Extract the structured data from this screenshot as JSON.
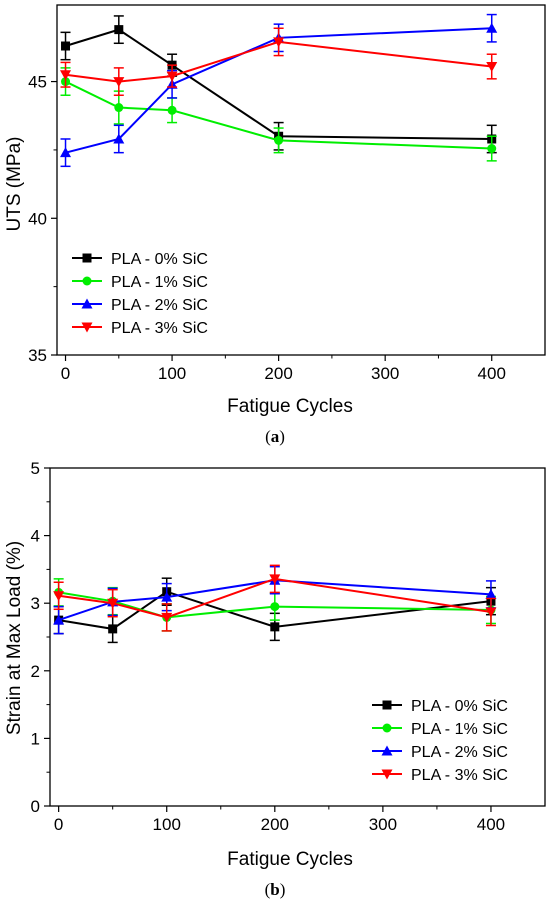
{
  "chart_data": [
    {
      "type": "line",
      "caption_letter": "a",
      "title": "",
      "xlabel": "Fatigue Cycles",
      "ylabel": "UTS (MPa)",
      "xlim": [
        -8,
        450
      ],
      "ylim": [
        35,
        47.8
      ],
      "xticks": [
        0,
        100,
        200,
        300,
        400
      ],
      "yticks": [
        35,
        40,
        45
      ],
      "grid": false,
      "legend_position": "lower-left",
      "series": [
        {
          "name": "PLA - 0% SiC",
          "color": "#000000",
          "marker": "square",
          "x": [
            0,
            50,
            100,
            200,
            400
          ],
          "y": [
            46.3,
            46.9,
            45.6,
            43.0,
            42.9
          ],
          "err": [
            0.5,
            0.5,
            0.4,
            0.5,
            0.5
          ]
        },
        {
          "name": "PLA - 1% SiC",
          "color": "#00ee00",
          "marker": "circle",
          "x": [
            0,
            50,
            100,
            200,
            400
          ],
          "y": [
            45.0,
            44.05,
            43.95,
            42.85,
            42.55
          ],
          "err": [
            0.5,
            0.6,
            0.45,
            0.45,
            0.45
          ]
        },
        {
          "name": "PLA - 2% SiC",
          "color": "#0000ff",
          "marker": "triangle-up",
          "x": [
            0,
            50,
            100,
            200,
            400
          ],
          "y": [
            42.4,
            42.9,
            44.9,
            46.6,
            46.95
          ],
          "err": [
            0.5,
            0.5,
            0.5,
            0.5,
            0.5
          ]
        },
        {
          "name": "PLA - 3% SiC",
          "color": "#ff0000",
          "marker": "triangle-down",
          "x": [
            0,
            50,
            100,
            200,
            400
          ],
          "y": [
            45.25,
            45.0,
            45.2,
            46.45,
            45.55
          ],
          "err": [
            0.45,
            0.5,
            0.4,
            0.5,
            0.45
          ]
        }
      ]
    },
    {
      "type": "line",
      "caption_letter": "b",
      "title": "",
      "xlabel": "Fatigue Cycles",
      "ylabel": "Strain at Max Load (%)",
      "xlim": [
        -8,
        450
      ],
      "ylim": [
        0,
        5
      ],
      "xticks": [
        0,
        100,
        200,
        300,
        400
      ],
      "yticks": [
        0,
        1,
        2,
        3,
        4,
        5
      ],
      "grid": false,
      "legend_position": "lower-right",
      "series": [
        {
          "name": "PLA - 0% SiC",
          "color": "#000000",
          "marker": "square",
          "x": [
            0,
            50,
            100,
            200,
            400
          ],
          "y": [
            2.75,
            2.62,
            3.17,
            2.65,
            3.03
          ],
          "err": [
            0.2,
            0.2,
            0.2,
            0.2,
            0.2
          ]
        },
        {
          "name": "PLA - 1% SiC",
          "color": "#00ee00",
          "marker": "circle",
          "x": [
            0,
            50,
            100,
            200,
            400
          ],
          "y": [
            3.16,
            3.03,
            2.79,
            2.95,
            2.9
          ],
          "err": [
            0.2,
            0.2,
            0.2,
            0.2,
            0.2
          ]
        },
        {
          "name": "PLA - 2% SiC",
          "color": "#0000ff",
          "marker": "triangle-up",
          "x": [
            0,
            50,
            100,
            200,
            400
          ],
          "y": [
            2.75,
            3.02,
            3.09,
            3.34,
            3.13
          ],
          "err": [
            0.2,
            0.2,
            0.2,
            0.2,
            0.2
          ]
        },
        {
          "name": "PLA - 3% SiC",
          "color": "#ff0000",
          "marker": "triangle-down",
          "x": [
            0,
            50,
            100,
            200,
            400
          ],
          "y": [
            3.11,
            3.0,
            2.79,
            3.36,
            2.87
          ],
          "err": [
            0.2,
            0.2,
            0.2,
            0.2,
            0.2
          ]
        }
      ]
    }
  ]
}
